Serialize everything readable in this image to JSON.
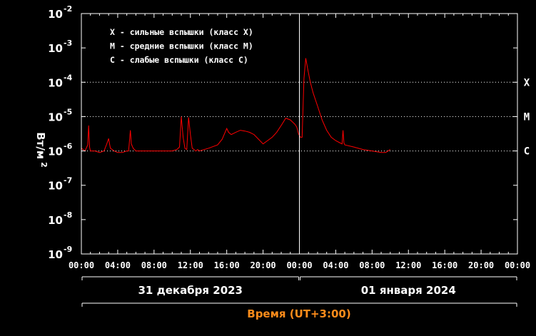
{
  "chart_data": {
    "type": "line",
    "y_scale": "log",
    "ylabel": "Вт/м",
    "ylabel_exp": "2",
    "ylim": [
      1e-09,
      0.01
    ],
    "xlabel": "Время (UT+3:00)",
    "y_ticks": [
      {
        "base": "10",
        "exp": "-2"
      },
      {
        "base": "10",
        "exp": "-3"
      },
      {
        "base": "10",
        "exp": "-4"
      },
      {
        "base": "10",
        "exp": "-5"
      },
      {
        "base": "10",
        "exp": "-6"
      },
      {
        "base": "10",
        "exp": "-7"
      },
      {
        "base": "10",
        "exp": "-8"
      },
      {
        "base": "10",
        "exp": "-9"
      }
    ],
    "x_tick_labels": [
      "00:00",
      "04:00",
      "08:00",
      "12:00",
      "16:00",
      "20:00",
      "00:00",
      "04:00",
      "08:00",
      "12:00",
      "16:00",
      "20:00",
      "00:00"
    ],
    "days": [
      "31 декабря 2023",
      "01 января 2024"
    ],
    "class_levels": [
      {
        "label": "X",
        "value": 0.0001
      },
      {
        "label": "M",
        "value": 1e-05
      },
      {
        "label": "C",
        "value": 1e-06
      }
    ],
    "legend": [
      "X - сильные вспышки (класс X)",
      "M - средние вспышки (класс M)",
      "C - слабые вспышки (класс C)"
    ],
    "colors": {
      "series": "#ff0000",
      "background": "#000000",
      "axis": "#ffffff",
      "xlabel": "#ff8c1a",
      "grid": "#ffffff"
    },
    "series": [
      {
        "x": [
          0.0,
          0.4,
          0.7,
          0.8,
          0.9,
          1.0,
          1.2,
          1.5,
          2.0,
          2.5,
          2.8,
          3.0,
          3.1,
          3.2,
          3.4,
          3.6,
          4.0,
          4.5,
          5.0,
          5.2,
          5.4,
          5.5,
          5.7,
          6.0,
          7.0,
          8.0,
          9.0,
          10.0,
          10.5,
          10.8,
          11.0,
          11.2,
          11.4,
          11.6,
          11.8,
          12.0,
          12.2,
          12.4,
          12.6,
          12.8,
          13.0,
          14.0,
          15.0,
          15.5,
          16.0,
          16.2,
          16.5,
          17.0,
          17.5,
          18.0,
          18.5,
          19.0,
          19.5,
          20.0,
          20.5,
          21.0,
          21.5,
          22.0,
          22.5,
          23.0,
          23.5,
          23.7,
          23.9,
          24.1,
          24.3,
          24.5,
          24.7,
          24.9,
          25.2,
          25.5,
          26.0,
          26.5,
          27.0,
          27.5,
          28.0,
          28.5,
          28.7,
          28.8,
          28.9,
          29.0,
          30.0,
          31.0,
          32.0,
          33.0,
          33.5,
          34.0
        ],
        "y": [
          1.2e-06,
          1e-06,
          1.5e-06,
          5.5e-06,
          1.3e-06,
          1e-06,
          1e-06,
          1e-06,
          9e-07,
          1e-06,
          1.6e-06,
          2.3e-06,
          1.6e-06,
          1.2e-06,
          1.1e-06,
          1e-06,
          9e-07,
          9e-07,
          1e-06,
          1e-06,
          4e-06,
          1.6e-06,
          1.2e-06,
          1e-06,
          1e-06,
          1e-06,
          1e-06,
          1e-06,
          1.1e-06,
          1.3e-06,
          1e-05,
          2.5e-06,
          1.2e-06,
          1.1e-06,
          9.5e-06,
          3e-06,
          1.2e-06,
          1.1e-06,
          1e-06,
          1.1e-06,
          1e-06,
          1.2e-06,
          1.5e-06,
          2.2e-06,
          4.5e-06,
          3.5e-06,
          3e-06,
          3.5e-06,
          4e-06,
          3.8e-06,
          3.5e-06,
          3e-06,
          2.2e-06,
          1.6e-06,
          2e-06,
          2.5e-06,
          3.5e-06,
          5.5e-06,
          9e-06,
          8e-06,
          6e-06,
          5e-06,
          3.2e-06,
          2.5e-06,
          2.5e-06,
          0.00013,
          0.0005,
          0.00025,
          0.0001,
          5e-05,
          2e-05,
          8e-06,
          4e-06,
          2.5e-06,
          2e-06,
          1.7e-06,
          1.6e-06,
          4e-06,
          1.7e-06,
          1.5e-06,
          1.3e-06,
          1.1e-06,
          1e-06,
          9e-07,
          9e-07,
          1.1e-06
        ]
      }
    ]
  }
}
